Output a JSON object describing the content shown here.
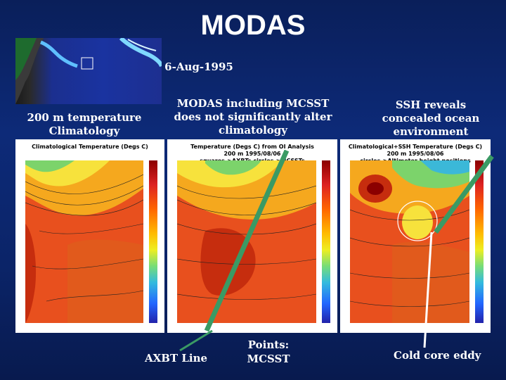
{
  "title": "MODAS",
  "date": "6-Aug-1995",
  "captions": {
    "left": "200 m temperature Climatology",
    "middle": "MODAS including MCSST does not significantly alter climatology",
    "right": "SSH reveals concealed ocean environment"
  },
  "panels": {
    "left_title": "Climatological Temperature (Degs C)",
    "middle_title": "Temperature (Degs C) from OI Analysis\n200 m 1995/08/06\nsquares->AXBTs circles->MCSSTs",
    "right_title": "Climatological+SSH Temperature (Degs C)\n200 m 1995/08/06\ncircles->Altimeter height positions"
  },
  "bottom": {
    "axbt": "AXBT Line",
    "points": "Points:\nMCSST",
    "eddy": "Cold core eddy"
  },
  "colors": {
    "background": "#0b2468",
    "line_green": "#3a9a64",
    "line_white": "#ffffff"
  }
}
